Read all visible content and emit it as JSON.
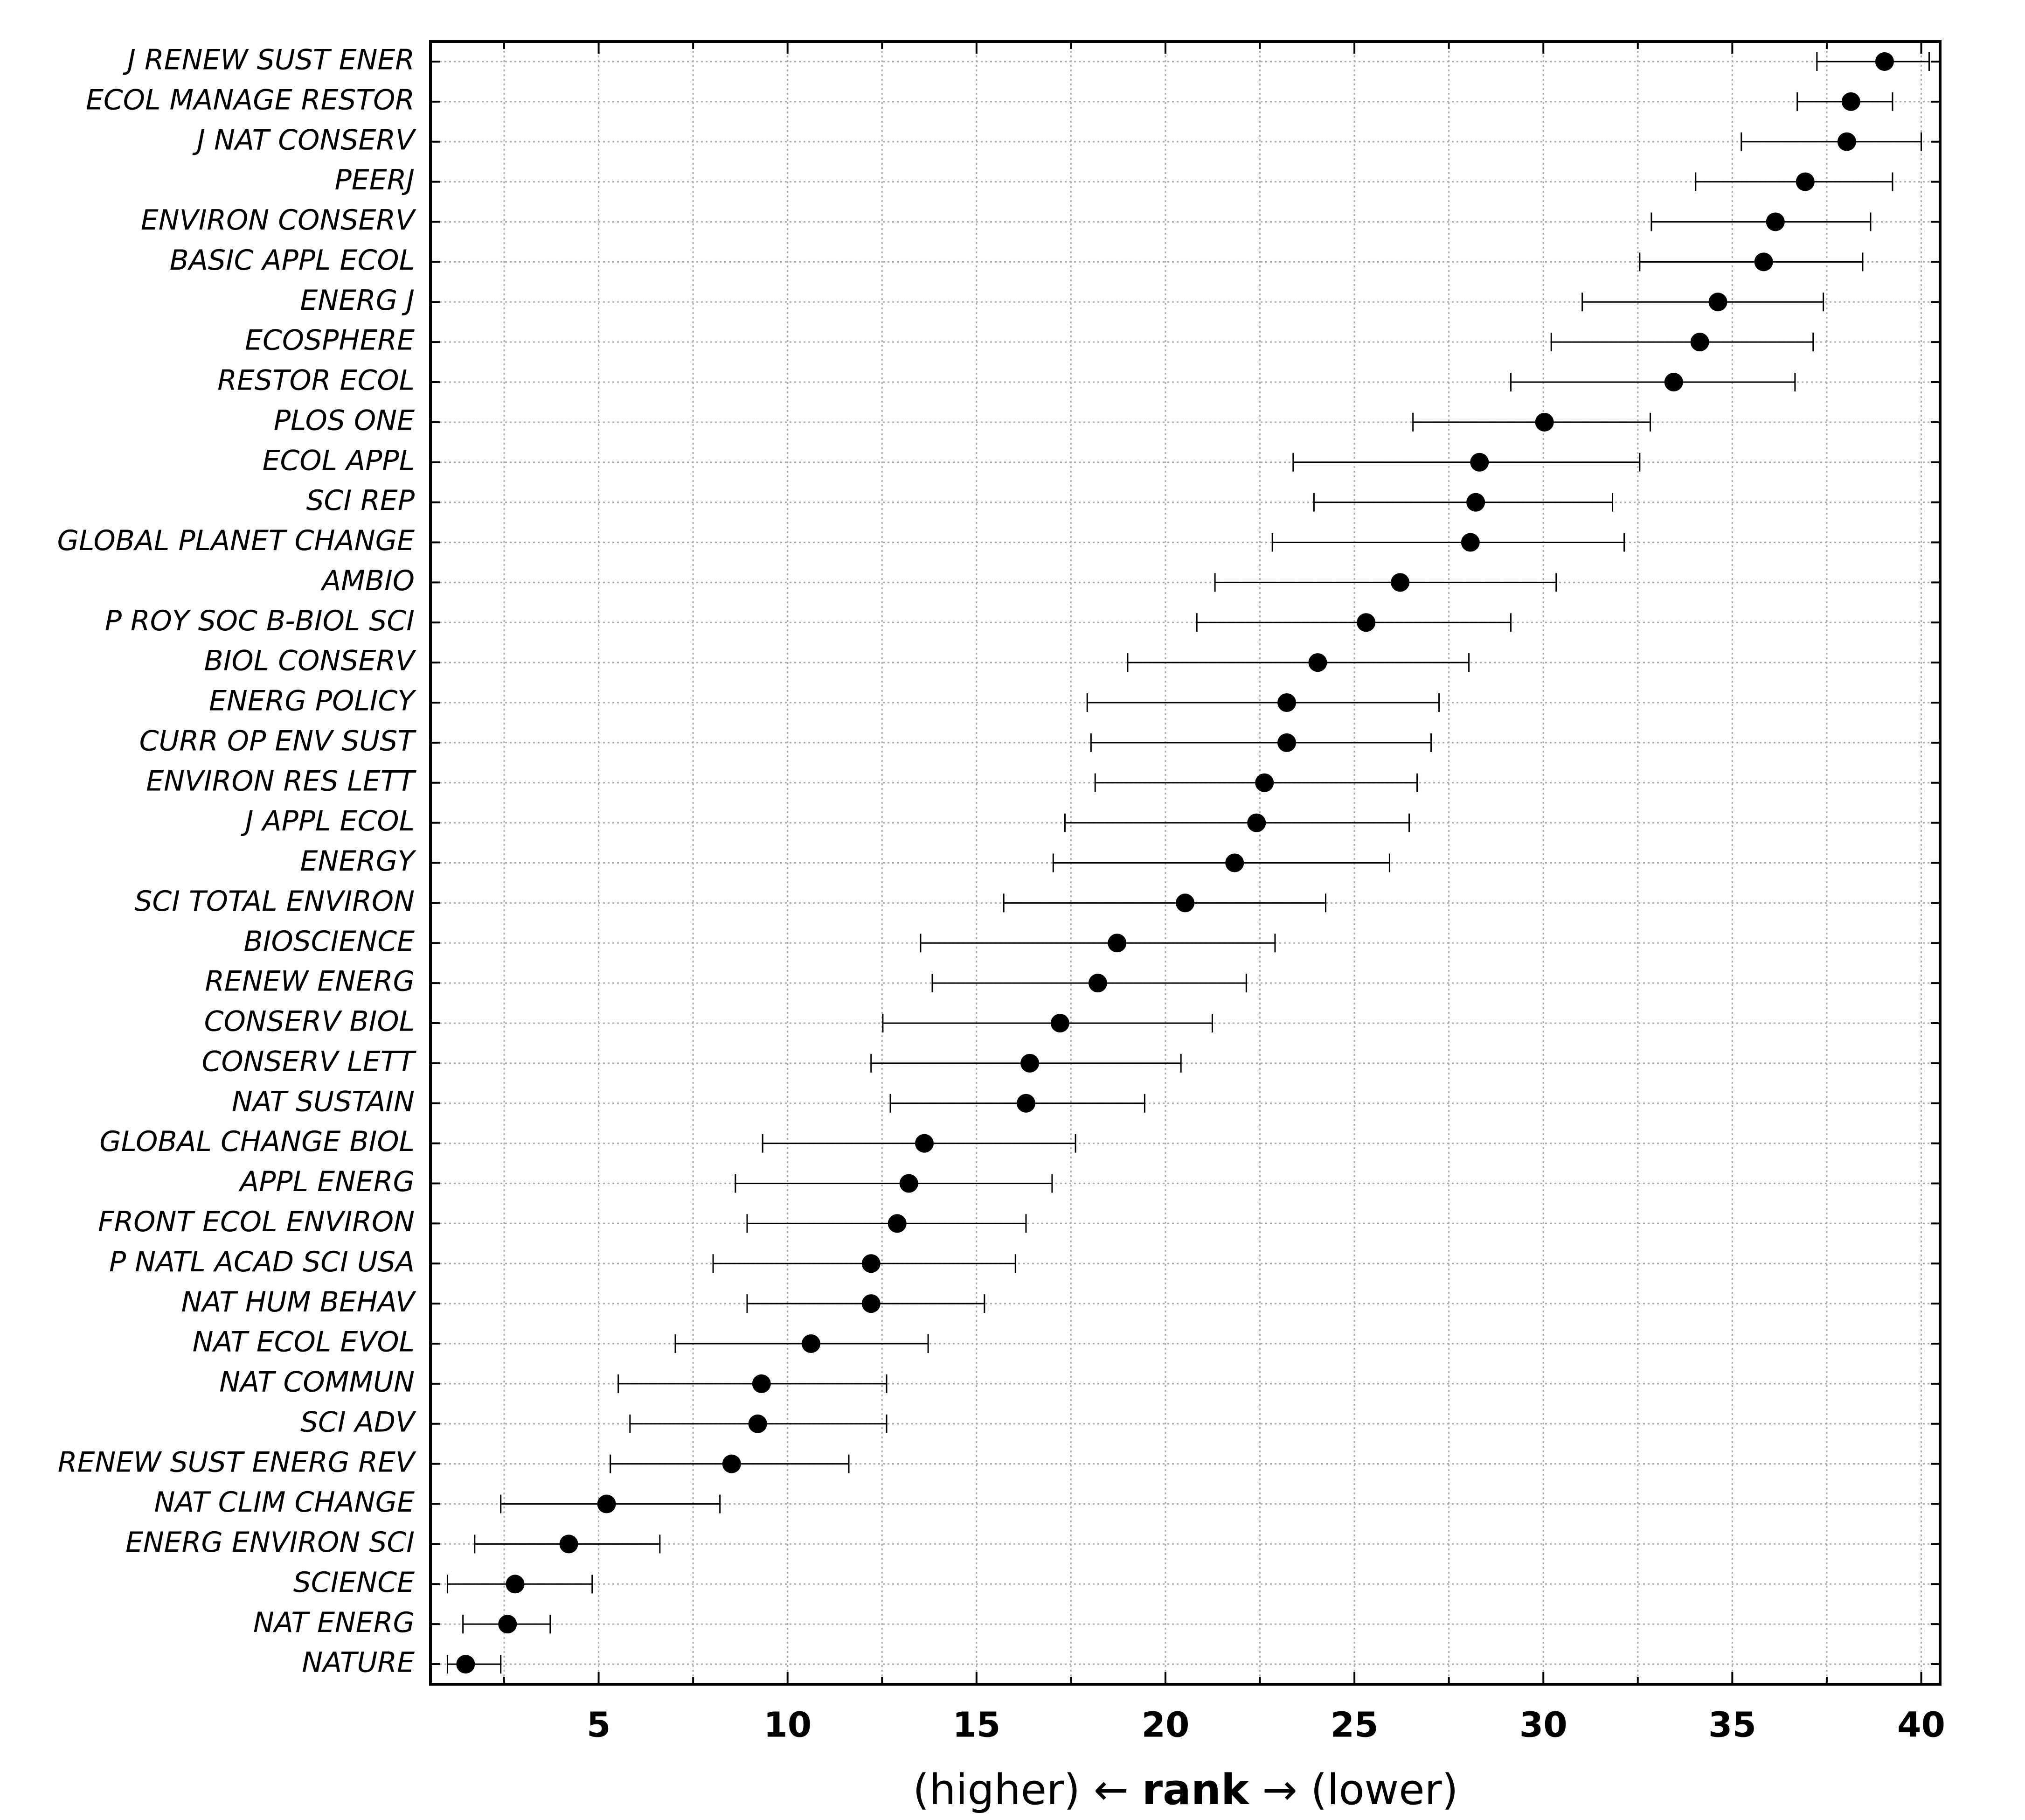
{
  "chart_data": {
    "type": "dot_errorbar",
    "categories": [
      "J RENEW SUST ENER",
      "ECOL MANAGE RESTOR",
      "J NAT CONSERV",
      "PEERJ",
      "ENVIRON CONSERV",
      "BASIC APPL ECOL",
      "ENERG J",
      "ECOSPHERE",
      "RESTOR ECOL",
      "PLOS ONE",
      "ECOL APPL",
      "SCI REP",
      "GLOBAL PLANET CHANGE",
      "AMBIO",
      "P ROY SOC B-BIOL SCI",
      "BIOL CONSERV",
      "ENERG POLICY",
      "CURR OP ENV SUST",
      "ENVIRON RES LETT",
      "J APPL ECOL",
      "ENERGY",
      "SCI TOTAL ENVIRON",
      "BIOSCIENCE",
      "RENEW ENERG",
      "CONSERV BIOL",
      "CONSERV LETT",
      "NAT SUSTAIN",
      "GLOBAL CHANGE BIOL",
      "APPL ENERG",
      "FRONT ECOL ENVIRON",
      "P NATL ACAD SCI USA",
      "NAT HUM BEHAV",
      "NAT ECOL EVOL",
      "NAT COMMUN",
      "SCI ADV",
      "RENEW SUST ENERG REV",
      "NAT CLIM CHANGE",
      "ENERG ENVIRON SCI",
      "SCIENCE",
      "NAT ENERG",
      "NATURE"
    ],
    "values": [
      39.03,
      38.14,
      38.03,
      36.93,
      36.14,
      35.83,
      34.62,
      34.14,
      33.45,
      30.03,
      28.31,
      28.21,
      28.07,
      26.21,
      25.31,
      24.03,
      23.21,
      23.21,
      22.62,
      22.41,
      21.83,
      20.52,
      18.72,
      18.21,
      17.21,
      16.41,
      16.31,
      13.62,
      13.21,
      12.9,
      12.21,
      12.21,
      10.62,
      9.31,
      9.21,
      8.52,
      5.21,
      4.21,
      2.79,
      2.59,
      1.48
    ],
    "lower": [
      37.24,
      36.72,
      35.24,
      34.03,
      32.86,
      32.55,
      31.03,
      30.21,
      29.14,
      26.55,
      23.38,
      23.93,
      22.83,
      21.31,
      20.83,
      19.0,
      17.93,
      18.03,
      18.14,
      17.34,
      17.03,
      15.72,
      13.52,
      13.83,
      12.52,
      12.21,
      12.72,
      9.34,
      8.62,
      8.93,
      8.03,
      8.93,
      7.03,
      5.52,
      5.83,
      5.31,
      2.41,
      1.72,
      1.0,
      1.41,
      1.0
    ],
    "upper": [
      40.21,
      39.24,
      40.0,
      39.24,
      38.66,
      38.45,
      37.41,
      37.14,
      36.66,
      32.83,
      32.55,
      31.83,
      32.14,
      30.34,
      29.14,
      28.03,
      27.24,
      27.03,
      26.66,
      26.45,
      25.93,
      24.24,
      22.9,
      22.14,
      21.24,
      20.41,
      19.45,
      17.62,
      17.0,
      16.31,
      16.03,
      15.21,
      13.72,
      12.62,
      12.62,
      11.62,
      8.21,
      6.62,
      4.83,
      3.72,
      2.41
    ],
    "color": "#000000",
    "xlim": [
      0.55,
      40.5
    ],
    "xticks": [
      5,
      10,
      15,
      20,
      25,
      30,
      35,
      40
    ],
    "xminorticks": [
      2.5,
      7.5,
      12.5,
      17.5,
      22.5,
      27.5,
      32.5,
      37.5
    ],
    "grid": true,
    "xlabel": {
      "before": "(higher) ← ",
      "bold": "rank",
      "after": " → (lower)"
    }
  }
}
